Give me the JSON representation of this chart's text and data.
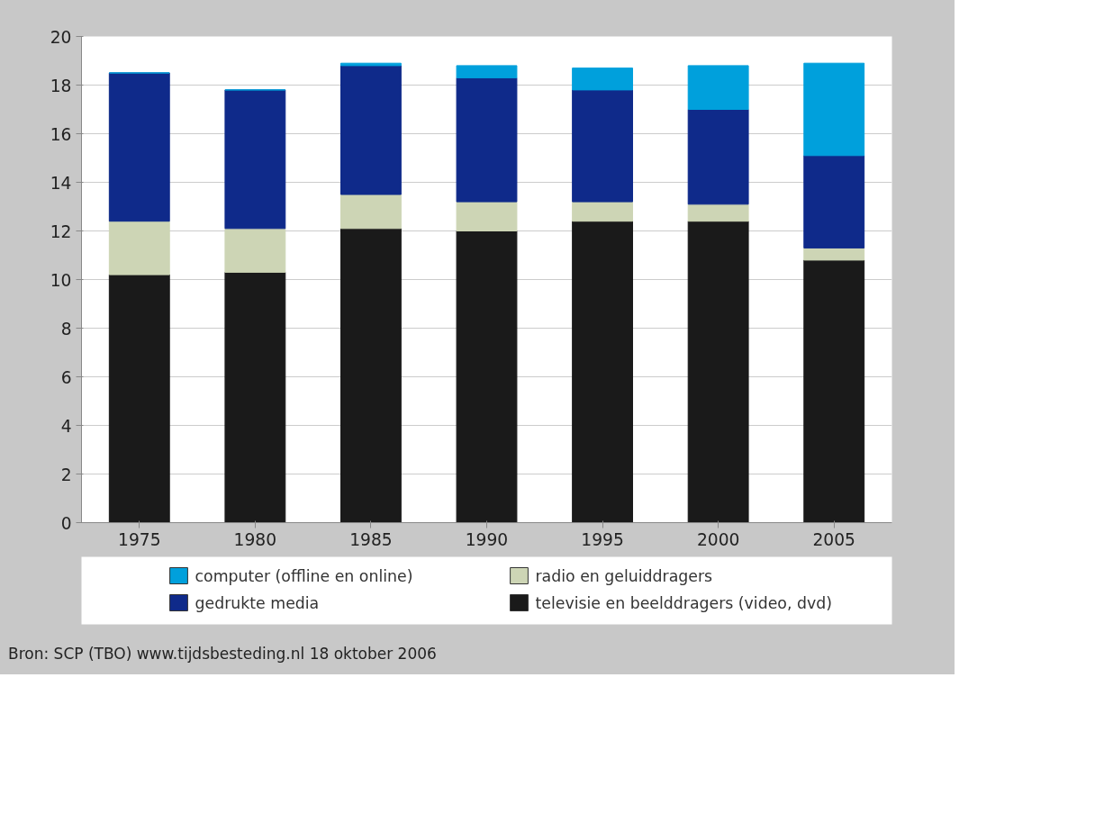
{
  "chart_data": {
    "type": "bar",
    "stacked": true,
    "categories": [
      "1975",
      "1980",
      "1985",
      "1990",
      "1995",
      "2000",
      "2005"
    ],
    "series": [
      {
        "name": "televisie en beelddragers (video, dvd)",
        "color": "#1a1a1a",
        "values": [
          10.2,
          10.3,
          12.1,
          12.0,
          12.4,
          12.4,
          10.8
        ]
      },
      {
        "name": "radio en geluiddragers",
        "color": "#cdd5b5",
        "values": [
          2.2,
          1.8,
          1.4,
          1.2,
          0.8,
          0.7,
          0.5
        ]
      },
      {
        "name": "gedrukte media",
        "color": "#0f2a8a",
        "values": [
          6.1,
          5.7,
          5.3,
          5.1,
          4.6,
          3.9,
          3.8
        ]
      },
      {
        "name": "computer (offline en online)",
        "color": "#00a0dc",
        "values": [
          0,
          0,
          0.1,
          0.5,
          0.9,
          1.8,
          3.8
        ]
      }
    ],
    "ylim": [
      0,
      20
    ],
    "yticks": [
      0,
      2,
      4,
      6,
      8,
      10,
      12,
      14,
      16,
      18,
      20
    ],
    "grid": "y",
    "legend": "bottom",
    "annotations": [
      "Bron: SCP (TBO) www.tijdsbesteding.nl 18 oktober 2006"
    ]
  }
}
